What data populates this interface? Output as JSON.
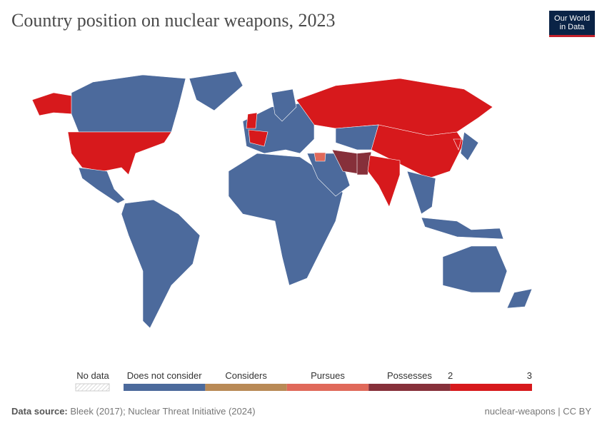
{
  "header": {
    "title": "Country position on nuclear weapons, 2023",
    "logo": [
      "Our World",
      "in Data"
    ]
  },
  "legend": {
    "no_data": "No data",
    "bins": [
      {
        "label": "Does not consider",
        "color": "#4c6a9c"
      },
      {
        "label": "Considers",
        "color": "#b98a56"
      },
      {
        "label": "Pursues",
        "color": "#e0695a"
      },
      {
        "label": "Possesses",
        "color": "#86303a"
      }
    ],
    "last_bin_color": "#d7191c",
    "ticks": [
      "2",
      "3"
    ]
  },
  "footer": {
    "source_label": "Data source:",
    "source": "Bleek (2017); Nuclear Threat Initiative (2024)",
    "slug": "nuclear-weapons | CC BY"
  }
}
